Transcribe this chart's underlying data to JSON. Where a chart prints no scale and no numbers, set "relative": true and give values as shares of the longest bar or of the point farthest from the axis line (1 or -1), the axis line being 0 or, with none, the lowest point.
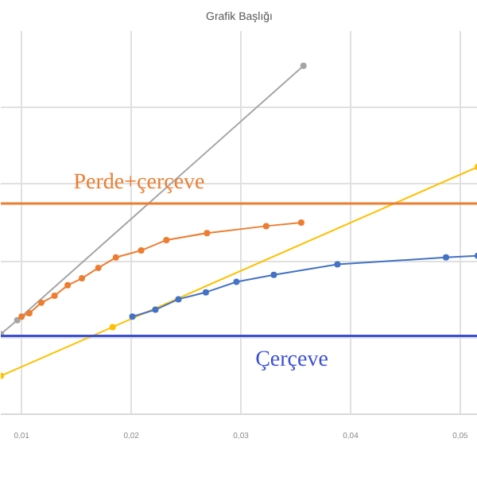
{
  "chart_data": {
    "type": "line",
    "title": "Grafik Başlığı",
    "relative": true,
    "xlim": [
      0.0081,
      0.0516
    ],
    "xticks": [
      {
        "value": 0.01,
        "label": "0,01"
      },
      {
        "value": 0.02,
        "label": "0,02"
      },
      {
        "value": 0.03,
        "label": "0,03"
      },
      {
        "value": 0.04,
        "label": "0,04"
      },
      {
        "value": 0.05,
        "label": "0,05"
      }
    ],
    "grid": true,
    "marker": "circle",
    "series": [
      {
        "color": "#a5a5a5",
        "x": [
          0.0081,
          0.0096,
          0.0357
        ],
        "values": [
          0.23,
          0.27,
          1.0
        ]
      },
      {
        "color": "#ed7d31",
        "x": [
          0.01,
          0.0107,
          0.0118,
          0.013,
          0.0142,
          0.0155,
          0.017,
          0.0186,
          0.0209,
          0.0232,
          0.0269,
          0.0323,
          0.0355
        ],
        "values": [
          0.28,
          0.29,
          0.32,
          0.34,
          0.37,
          0.39,
          0.42,
          0.45,
          0.47,
          0.5,
          0.52,
          0.54,
          0.55
        ]
      },
      {
        "color": "#ffc000",
        "x": [
          0.0081,
          0.0183,
          0.0516
        ],
        "values": [
          0.11,
          0.25,
          0.71
        ]
      },
      {
        "color": "#4472c4",
        "x": [
          0.0201,
          0.0222,
          0.0243,
          0.0268,
          0.0296,
          0.033,
          0.0388,
          0.0487,
          0.0516
        ],
        "values": [
          0.28,
          0.3,
          0.33,
          0.35,
          0.38,
          0.4,
          0.43,
          0.45,
          0.455
        ]
      }
    ],
    "ref_lines": [
      {
        "axis": "y",
        "value": 0.605,
        "label": "Perde+çerçeve",
        "color": "#ed7d31"
      },
      {
        "axis": "y",
        "value": 0.225,
        "label": "Çerçeve",
        "color": "#3b4fd6"
      }
    ]
  }
}
